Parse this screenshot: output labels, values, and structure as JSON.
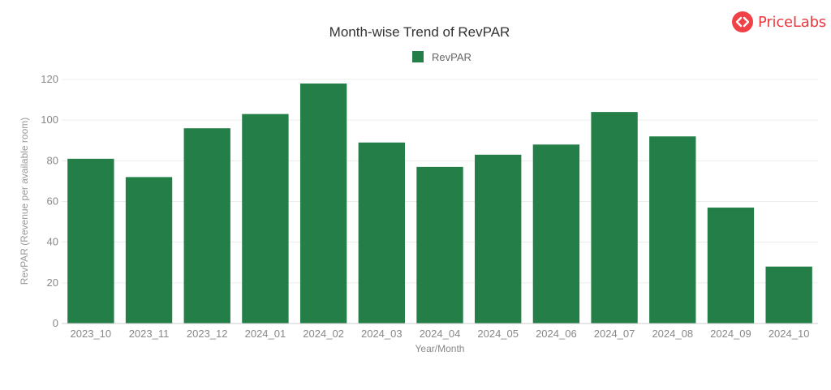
{
  "brand": {
    "name": "PriceLabs",
    "icon": "pricelabs-logo-icon",
    "color": "#ef4146"
  },
  "chart_data": {
    "type": "bar",
    "title": "Month-wise Trend of RevPAR",
    "xlabel": "Year/Month",
    "ylabel": "RevPAR (Revenue per available room)",
    "categories": [
      "2023_10",
      "2023_11",
      "2023_12",
      "2024_01",
      "2024_02",
      "2024_03",
      "2024_04",
      "2024_05",
      "2024_06",
      "2024_07",
      "2024_08",
      "2024_09",
      "2024_10"
    ],
    "series": [
      {
        "name": "RevPAR",
        "color": "#237f47",
        "values": [
          81,
          72,
          96,
          103,
          118,
          89,
          77,
          83,
          88,
          104,
          92,
          57,
          28
        ]
      }
    ],
    "ylim": [
      0,
      120
    ],
    "yticks": [
      0,
      20,
      40,
      60,
      80,
      100,
      120
    ],
    "grid": true,
    "legend": "top-center"
  }
}
